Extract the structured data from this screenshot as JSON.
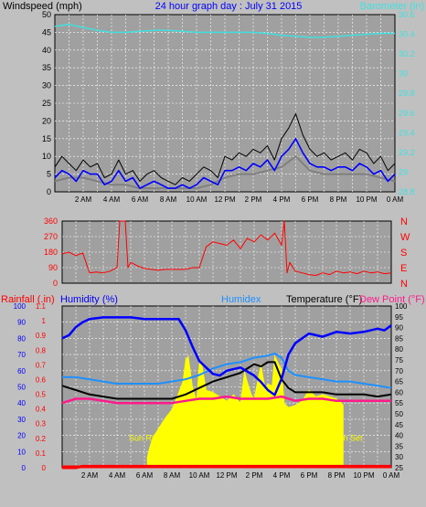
{
  "chart_data": [
    {
      "type": "line",
      "title": "24 hour graph day : July 31 2015",
      "ylabel": "Windspeed (mph)",
      "y2label": "Barometer (in)",
      "x_ticks": [
        "2 AM",
        "4 AM",
        "6 AM",
        "8 AM",
        "10 AM",
        "12 PM",
        "2 PM",
        "4 PM",
        "6 PM",
        "8 PM",
        "10 PM",
        "0 AM"
      ],
      "ylim": [
        0,
        50
      ],
      "y_ticks": [
        "0",
        "5",
        "10",
        "15",
        "20",
        "25",
        "30",
        "35",
        "40",
        "45",
        "50"
      ],
      "y2lim": [
        28.8,
        30.6
      ],
      "y2_ticks": [
        "28.8",
        "29",
        "29.2",
        "29.4",
        "29.6",
        "29.8",
        "30",
        "30.2",
        "30.4",
        "30.6"
      ],
      "grid": true,
      "colors": {
        "gust": "#000000",
        "speed": "#0000ff",
        "avg": "#808080",
        "barometer": "#40e0e0",
        "title": "#0000ff"
      },
      "series": [
        {
          "key": "gust",
          "x": [
            0,
            0.5,
            1,
            1.5,
            2,
            2.5,
            3,
            3.5,
            4,
            4.5,
            5,
            5.5,
            6,
            6.5,
            7,
            7.5,
            8,
            8.5,
            9,
            9.5,
            10,
            10.5,
            11,
            11.5,
            12,
            12.5,
            13,
            13.5,
            14,
            14.5,
            15,
            15.5,
            16,
            16.5,
            17,
            17.5,
            18,
            18.5,
            19,
            19.5,
            20,
            20.5,
            21,
            21.5,
            22,
            22.5,
            23,
            23.5,
            24
          ],
          "values": [
            7,
            10,
            8,
            6,
            9,
            7,
            8,
            4,
            5,
            9,
            5,
            6,
            3,
            5,
            6,
            4,
            3,
            2,
            4,
            3,
            5,
            7,
            6,
            4,
            10,
            9,
            11,
            10,
            12,
            11,
            13,
            9,
            15,
            18,
            22,
            16,
            12,
            10,
            11,
            9,
            10,
            11,
            9,
            12,
            11,
            8,
            10,
            6,
            8
          ]
        },
        {
          "key": "speed",
          "x": [
            0,
            0.5,
            1,
            1.5,
            2,
            2.5,
            3,
            3.5,
            4,
            4.5,
            5,
            5.5,
            6,
            6.5,
            7,
            7.5,
            8,
            8.5,
            9,
            9.5,
            10,
            10.5,
            11,
            11.5,
            12,
            12.5,
            13,
            13.5,
            14,
            14.5,
            15,
            15.5,
            16,
            16.5,
            17,
            17.5,
            18,
            18.5,
            19,
            19.5,
            20,
            20.5,
            21,
            21.5,
            22,
            22.5,
            23,
            23.5,
            24
          ],
          "values": [
            4,
            6,
            5,
            3,
            6,
            5,
            5,
            2,
            3,
            6,
            3,
            4,
            1,
            2,
            3,
            2,
            1,
            1,
            2,
            1,
            2,
            4,
            3,
            2,
            6,
            6,
            7,
            6,
            8,
            7,
            9,
            6,
            10,
            12,
            15,
            11,
            8,
            7,
            7,
            6,
            7,
            7,
            6,
            8,
            7,
            5,
            6,
            3,
            5
          ]
        },
        {
          "key": "avg",
          "x": [
            0,
            1,
            2,
            3,
            4,
            5,
            6,
            7,
            8,
            9,
            10,
            11,
            12,
            13,
            14,
            15,
            16,
            17,
            18,
            19,
            20,
            21,
            22,
            23,
            24
          ],
          "values": [
            3,
            4,
            4,
            3,
            2,
            2,
            1,
            1,
            1,
            1,
            1,
            2,
            4,
            5,
            5,
            6,
            7,
            10,
            6,
            5,
            5,
            5,
            5,
            4,
            3
          ]
        },
        {
          "key": "barometer",
          "x": [
            0,
            1,
            2,
            3,
            4,
            5,
            6,
            7,
            8,
            9,
            10,
            11,
            12,
            13,
            14,
            15,
            16,
            17,
            18,
            19,
            20,
            21,
            22,
            23,
            24
          ],
          "values": [
            30.48,
            30.5,
            30.47,
            30.44,
            30.42,
            30.42,
            30.43,
            30.44,
            30.44,
            30.43,
            30.42,
            30.42,
            30.42,
            30.42,
            30.42,
            30.41,
            30.39,
            30.38,
            30.37,
            30.37,
            30.38,
            30.39,
            30.4,
            30.41,
            30.41
          ]
        }
      ]
    },
    {
      "type": "line",
      "y_ticks": [
        "0",
        "90",
        "180",
        "270",
        "360"
      ],
      "ylim": [
        0,
        360
      ],
      "compass": [
        "N",
        "W",
        "S",
        "E",
        "N"
      ],
      "grid": true,
      "colors": {
        "direction": "#ff0000",
        "axis": "#ff0000"
      },
      "series": [
        {
          "key": "direction",
          "x": [
            0,
            0.5,
            1,
            1.5,
            2,
            2.5,
            3,
            3.5,
            4,
            4.2,
            4.4,
            4.6,
            4.8,
            5,
            5.5,
            6,
            6.5,
            7,
            7.5,
            8,
            8.5,
            9,
            9.5,
            10,
            10.5,
            11,
            11.5,
            12,
            12.5,
            13,
            13.5,
            14,
            14.5,
            15,
            15.5,
            16,
            16.2,
            16.4,
            16.6,
            17,
            17.5,
            18,
            18.5,
            19,
            19.5,
            20,
            20.5,
            21,
            21.5,
            22,
            22.5,
            23,
            23.5,
            24
          ],
          "values": [
            170,
            180,
            160,
            175,
            60,
            65,
            60,
            70,
            90,
            360,
            360,
            360,
            90,
            120,
            100,
            85,
            80,
            75,
            80,
            80,
            80,
            80,
            90,
            90,
            210,
            240,
            230,
            220,
            250,
            200,
            260,
            240,
            280,
            250,
            290,
            220,
            360,
            60,
            120,
            70,
            60,
            50,
            45,
            60,
            50,
            70,
            60,
            65,
            55,
            70,
            60,
            65,
            55,
            60
          ]
        }
      ]
    },
    {
      "type": "line",
      "labels": {
        "rain": "Rainfall (.in)",
        "humidity": "Humidity (%)",
        "humidex": "Humidex",
        "temp": "Temperature (°F)",
        "dew": "Dew Point (°F)"
      },
      "rain_ticks": [
        "0",
        "0.1",
        "0.2",
        "0.3",
        "0.4",
        "0.5",
        "0.6",
        "0.7",
        "0.8",
        "0.9",
        "1",
        "1.1"
      ],
      "rain_lim": [
        0,
        1.1
      ],
      "hum_ticks": [
        "0",
        "10",
        "20",
        "30",
        "40",
        "50",
        "60",
        "70",
        "80",
        "90",
        "100"
      ],
      "hum_lim": [
        0,
        100
      ],
      "temp_ticks": [
        "25",
        "30",
        "35",
        "40",
        "45",
        "50",
        "55",
        "60",
        "65",
        "70",
        "75",
        "80",
        "85",
        "90",
        "95",
        "100"
      ],
      "temp_lim": [
        25,
        100
      ],
      "annotations": [
        {
          "text": "Sun Rise",
          "x": 6.2,
          "y": 35
        },
        {
          "text": "Sun Set",
          "x": 20.7,
          "y": 35
        }
      ],
      "grid": true,
      "colors": {
        "humidity": "#0000ff",
        "humidex": "#1e90ff",
        "temp": "#000000",
        "dew": "#ff1a8c",
        "rain": "#ff0000",
        "solar": "#ffff00",
        "label": "#ffff00"
      },
      "series": [
        {
          "key": "humidity",
          "x": [
            0,
            0.5,
            1,
            1.5,
            2,
            3,
            4,
            5,
            6,
            7,
            7.5,
            8,
            8.5,
            9,
            9.5,
            10,
            10.5,
            11,
            11.5,
            12,
            13,
            14,
            14.5,
            15,
            15.5,
            16,
            16.5,
            17,
            17.5,
            18,
            19,
            20,
            21,
            22,
            23,
            23.5,
            24
          ],
          "values": [
            80,
            82,
            87,
            90,
            92,
            93,
            93,
            93,
            92,
            92,
            92,
            92,
            92,
            85,
            75,
            66,
            62,
            58,
            57,
            60,
            62,
            57,
            53,
            48,
            45,
            55,
            70,
            77,
            80,
            83,
            81,
            84,
            83,
            84,
            86,
            85,
            88
          ]
        },
        {
          "key": "humidex",
          "x": [
            0,
            1,
            2,
            3,
            4,
            5,
            6,
            7,
            8,
            9,
            10,
            11,
            12,
            13,
            14,
            15,
            15.5,
            16,
            16.5,
            17,
            18,
            19,
            20,
            21,
            22,
            23,
            24
          ],
          "values": [
            67,
            67,
            66,
            65,
            64,
            64,
            64,
            64,
            65,
            66,
            68,
            71,
            73,
            74,
            76,
            77,
            78,
            76,
            70,
            68,
            67,
            66,
            65,
            65,
            64,
            63,
            62
          ]
        },
        {
          "key": "temp",
          "x": [
            0,
            1,
            2,
            3,
            4,
            5,
            6,
            7,
            8,
            9,
            10,
            11,
            12,
            13,
            13.5,
            14,
            14.5,
            15,
            15.5,
            16,
            16.5,
            17,
            18,
            19,
            20,
            21,
            22,
            23,
            24
          ],
          "values": [
            63,
            61,
            59,
            58,
            57,
            57,
            57,
            57,
            57,
            59,
            62,
            65,
            67,
            69,
            71,
            73,
            72,
            74,
            74,
            66,
            62,
            60,
            60,
            60,
            59,
            59,
            59,
            58,
            59
          ]
        },
        {
          "key": "dew",
          "x": [
            0,
            1,
            2,
            3,
            4,
            5,
            6,
            7,
            8,
            9,
            10,
            11,
            12,
            13,
            14,
            15,
            16,
            17,
            18,
            19,
            20,
            21,
            22,
            23,
            24
          ],
          "values": [
            55,
            57,
            57,
            56,
            55,
            55,
            55,
            55,
            55,
            56,
            57,
            57,
            58,
            57,
            57,
            57,
            58,
            56,
            57,
            57,
            56,
            56,
            56,
            56,
            56
          ]
        },
        {
          "key": "solar",
          "x": [
            6.2,
            6.4,
            6.6,
            7,
            7.5,
            8,
            8.5,
            8.8,
            9,
            9.2,
            9.5,
            9.8,
            10,
            10.2,
            10.5,
            11,
            11.5,
            12,
            12.5,
            13,
            13.3,
            13.5,
            13.8,
            14,
            14.3,
            14.5,
            14.8,
            15,
            15.3,
            15.5,
            15.8,
            16,
            16.2,
            16.5,
            17,
            17.5,
            18,
            18.5,
            19,
            19.5,
            20,
            20.4,
            20.5
          ],
          "values": [
            5,
            10,
            14,
            18,
            23,
            27,
            35,
            40,
            50,
            52,
            38,
            31,
            49,
            48,
            36,
            35,
            33,
            31,
            34,
            30,
            45,
            40,
            34,
            32,
            42,
            48,
            37,
            39,
            38,
            52,
            48,
            46,
            30,
            28,
            29,
            31,
            36,
            33,
            34,
            33,
            32,
            30,
            29
          ]
        },
        {
          "key": "rain",
          "x": [
            0,
            1,
            1.5,
            24
          ],
          "values": [
            0,
            0,
            0.01,
            0.01
          ]
        }
      ]
    }
  ]
}
